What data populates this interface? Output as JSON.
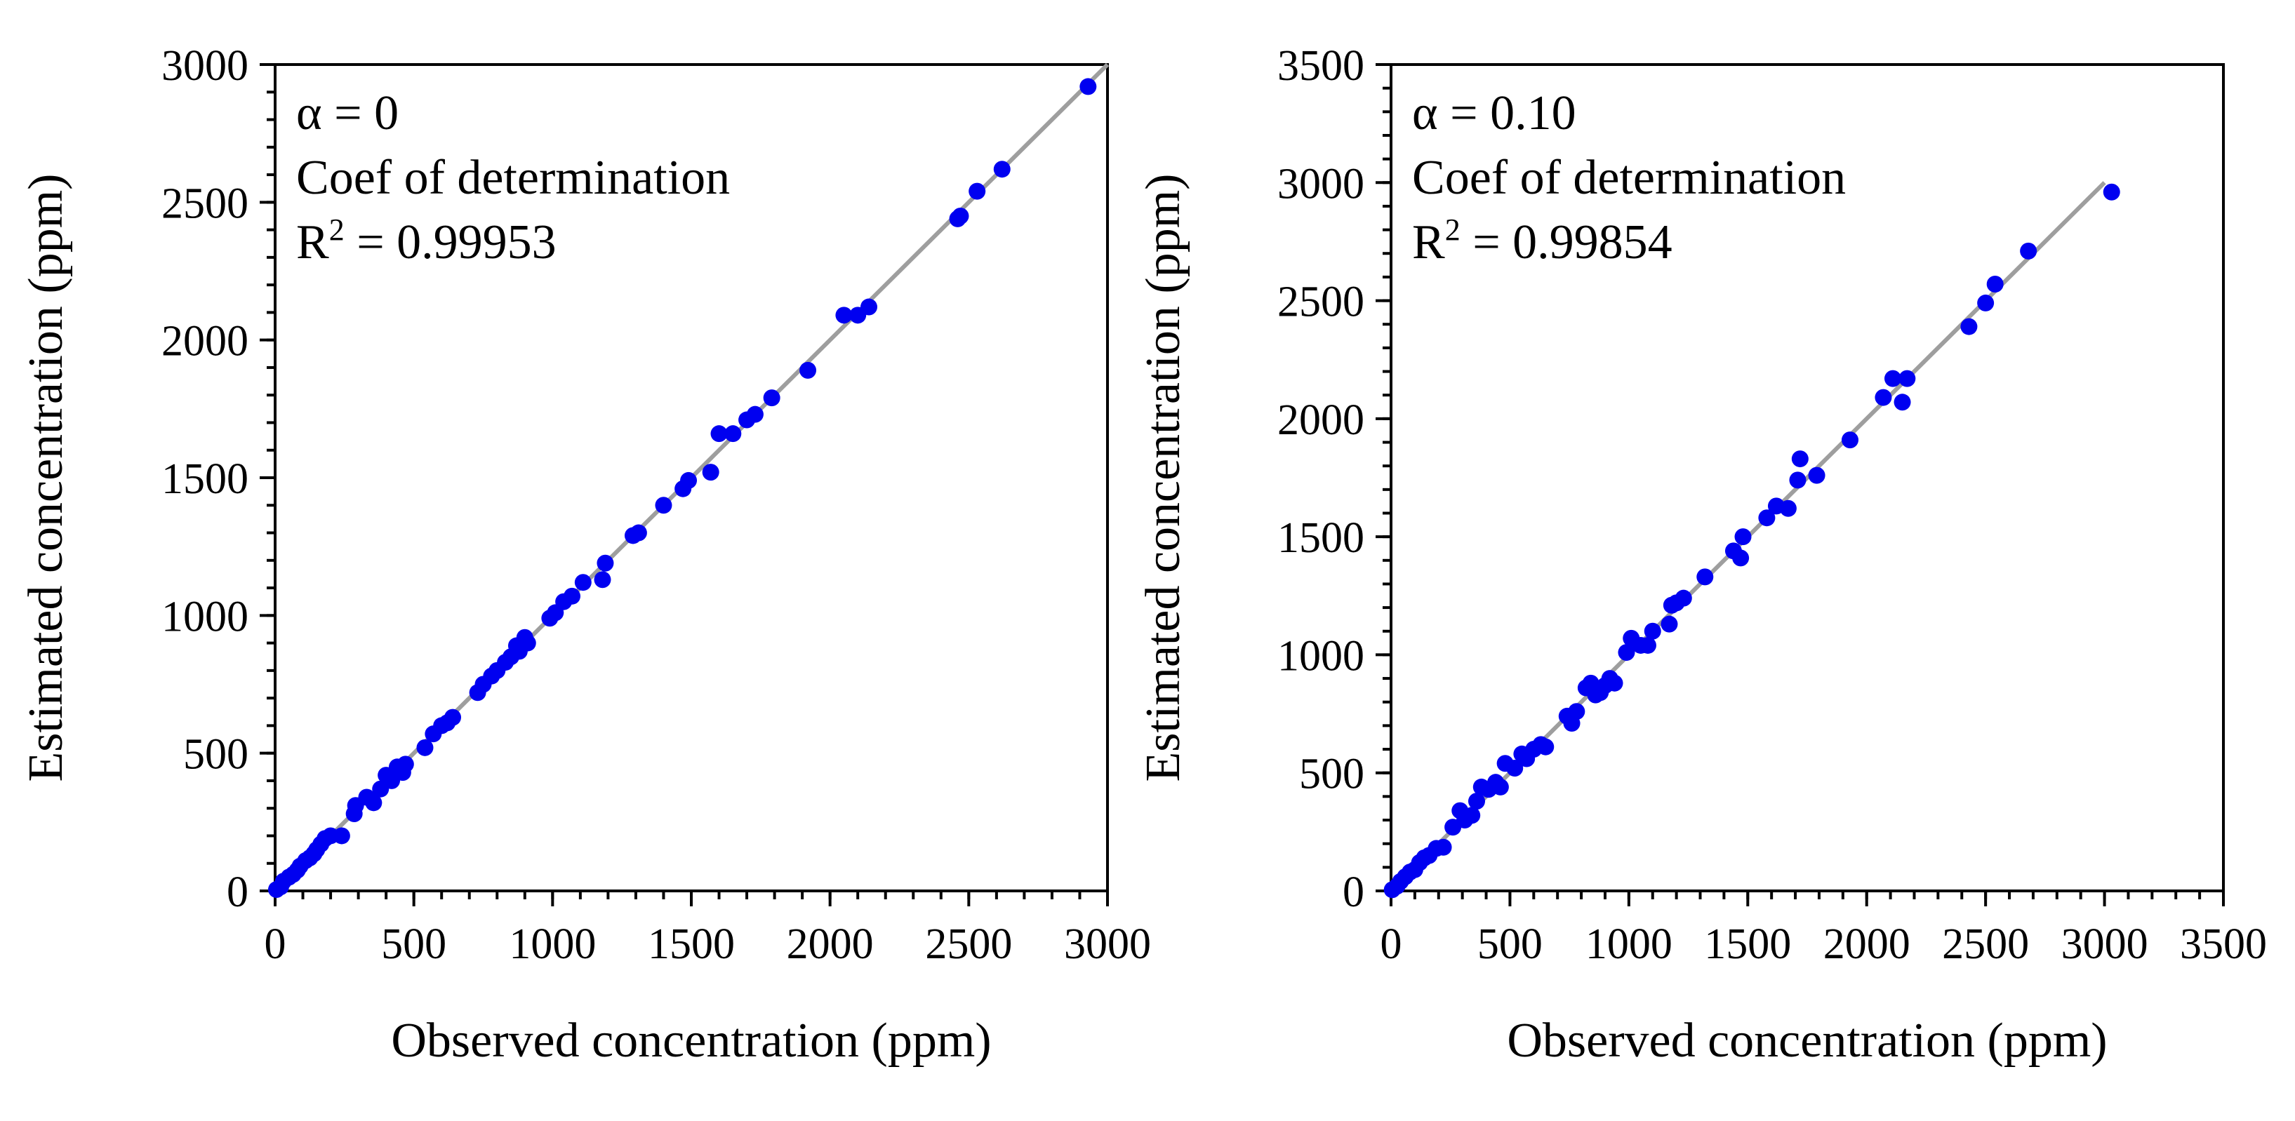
{
  "chart_data": [
    {
      "type": "scatter",
      "xlabel": "Observed concentration (ppm)",
      "ylabel": "Estimated concentration (ppm)",
      "xlim": [
        0,
        3000
      ],
      "ylim": [
        0,
        3000
      ],
      "xticks": [
        "0",
        "500",
        "1000",
        "1500",
        "2000",
        "2500",
        "3000"
      ],
      "yticks": [
        "0",
        "500",
        "1000",
        "1500",
        "2000",
        "2500",
        "3000"
      ],
      "xtick_values": [
        0,
        500,
        1000,
        1500,
        2000,
        2500,
        3000
      ],
      "ytick_values": [
        0,
        500,
        1000,
        1500,
        2000,
        2500,
        3000
      ],
      "minor_step": 100,
      "reference_line": [
        [
          0,
          0
        ],
        [
          3000,
          3000
        ]
      ],
      "annotation": {
        "alpha": "α = 0",
        "coef": "Coef of determination",
        "r_label": "R",
        "r_sup": "2",
        "r_value": " = 0.99953"
      },
      "series": [
        {
          "name": "points",
          "color": "#0000f0",
          "x": [
            5,
            20,
            30,
            50,
            65,
            80,
            90,
            110,
            125,
            140,
            150,
            165,
            180,
            200,
            240,
            285,
            290,
            330,
            355,
            380,
            400,
            420,
            440,
            460,
            470,
            540,
            570,
            600,
            620,
            640,
            730,
            750,
            780,
            800,
            830,
            850,
            870,
            880,
            900,
            910,
            990,
            1010,
            1040,
            1070,
            1110,
            1180,
            1190,
            1290,
            1310,
            1400,
            1470,
            1490,
            1570,
            1600,
            1650,
            1700,
            1730,
            1790,
            1920,
            2050,
            2100,
            2140,
            2460,
            2470,
            2530,
            2620,
            2930
          ],
          "y": [
            5,
            15,
            35,
            50,
            60,
            75,
            90,
            110,
            120,
            135,
            150,
            170,
            190,
            200,
            200,
            280,
            310,
            340,
            320,
            370,
            420,
            400,
            450,
            430,
            460,
            520,
            570,
            600,
            610,
            630,
            720,
            750,
            780,
            800,
            830,
            850,
            890,
            870,
            920,
            900,
            990,
            1010,
            1050,
            1070,
            1120,
            1130,
            1190,
            1290,
            1300,
            1400,
            1460,
            1490,
            1520,
            1660,
            1660,
            1710,
            1730,
            1790,
            1890,
            2090,
            2090,
            2120,
            2440,
            2450,
            2540,
            2620,
            2920
          ]
        }
      ]
    },
    {
      "type": "scatter",
      "xlabel": "Observed concentration (ppm)",
      "ylabel": "Estimated concentration (ppm)",
      "xlim": [
        0,
        3500
      ],
      "ylim": [
        0,
        3500
      ],
      "xticks": [
        "0",
        "500",
        "1000",
        "1500",
        "2000",
        "2500",
        "3000",
        "3500"
      ],
      "yticks": [
        "0",
        "500",
        "1000",
        "1500",
        "2000",
        "2500",
        "3000",
        "3500"
      ],
      "xtick_values": [
        0,
        500,
        1000,
        1500,
        2000,
        2500,
        3000,
        3500
      ],
      "ytick_values": [
        0,
        500,
        1000,
        1500,
        2000,
        2500,
        3000,
        3500
      ],
      "minor_step": 100,
      "reference_line": [
        [
          0,
          0
        ],
        [
          3000,
          3000
        ]
      ],
      "annotation": {
        "alpha": "α = 0.10",
        "coef": "Coef of determination",
        "r_label": "R",
        "r_sup": "2",
        "r_value": " = 0.99854"
      },
      "series": [
        {
          "name": "points",
          "color": "#0000f0",
          "x": [
            5,
            25,
            40,
            60,
            80,
            100,
            120,
            140,
            160,
            190,
            220,
            260,
            290,
            310,
            340,
            360,
            380,
            410,
            440,
            460,
            480,
            520,
            550,
            570,
            600,
            630,
            650,
            740,
            760,
            780,
            820,
            840,
            860,
            880,
            900,
            920,
            940,
            990,
            1010,
            1050,
            1080,
            1100,
            1170,
            1180,
            1200,
            1230,
            1320,
            1440,
            1470,
            1480,
            1580,
            1620,
            1670,
            1710,
            1720,
            1790,
            1930,
            2070,
            2110,
            2150,
            2170,
            2430,
            2500,
            2540,
            2680,
            3030
          ],
          "y": [
            5,
            20,
            40,
            60,
            80,
            90,
            120,
            140,
            150,
            180,
            185,
            270,
            340,
            300,
            320,
            380,
            440,
            430,
            460,
            440,
            540,
            520,
            580,
            560,
            600,
            620,
            610,
            740,
            710,
            760,
            860,
            880,
            830,
            840,
            870,
            900,
            880,
            1010,
            1070,
            1040,
            1040,
            1100,
            1130,
            1210,
            1220,
            1240,
            1330,
            1440,
            1410,
            1500,
            1580,
            1630,
            1620,
            1740,
            1830,
            1760,
            1910,
            2090,
            2170,
            2070,
            2170,
            2390,
            2490,
            2570,
            2710,
            2960
          ]
        }
      ]
    }
  ]
}
